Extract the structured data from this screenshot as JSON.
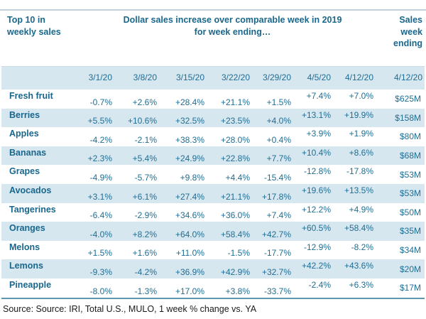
{
  "header": {
    "left": {
      "line1": "Top 10 in",
      "line2": "weekly sales"
    },
    "center": {
      "line1": "Dollar sales increase over comparable week in 2019",
      "line2": "for week ending…"
    },
    "right": {
      "line1": "Sales",
      "line2": "week",
      "line3": "ending"
    }
  },
  "footer": {
    "source_text": "Source: Source: IRI, Total U.S., MULO, 1 week % change vs. YA"
  },
  "colors": {
    "accent_text": "#1e6e94",
    "bold_text": "#19678d",
    "row_band": "#d7e7f0",
    "rule_top": "#c2d2da",
    "rule_bottom": "#5e96b2",
    "footer_text": "#1a1a1a"
  },
  "chart_data": {
    "type": "table",
    "title": "Dollar sales increase over comparable week in 2019 for week ending…",
    "row_header": "Top 10 in weekly sales",
    "last_column_header": "Sales week ending",
    "columns": [
      "3/1/20",
      "3/8/20",
      "3/15/20",
      "3/22/20",
      "3/29/20",
      "4/5/20",
      "4/12/20",
      "4/12/20"
    ],
    "rows": [
      {
        "name": "Fresh fruit",
        "pct_change": [
          "-0.7%",
          "+2.6%",
          "+28.4%",
          "+21.1%",
          "+1.5%",
          "+7.4%",
          "+7.0%"
        ],
        "sales_week_ending": "$625M"
      },
      {
        "name": "Berries",
        "pct_change": [
          "+5.5%",
          "+10.6%",
          "+32.5%",
          "+23.5%",
          "+4.0%",
          "+13.1%",
          "+19.9%"
        ],
        "sales_week_ending": "$158M"
      },
      {
        "name": "Apples",
        "pct_change": [
          "-4.2%",
          "-2.1%",
          "+38.3%",
          "+28.0%",
          "+0.4%",
          "+3.9%",
          "+1.9%"
        ],
        "sales_week_ending": "$80M"
      },
      {
        "name": "Bananas",
        "pct_change": [
          "+2.3%",
          "+5.4%",
          "+24.9%",
          "+22.8%",
          "+7.7%",
          "+10.4%",
          "+8.6%"
        ],
        "sales_week_ending": "$68M"
      },
      {
        "name": "Grapes",
        "pct_change": [
          "-4.9%",
          "-5.7%",
          "+9.8%",
          "+4.4%",
          "-15.4%",
          "-12.8%",
          "-17.8%"
        ],
        "sales_week_ending": "$53M"
      },
      {
        "name": "Avocados",
        "pct_change": [
          "+3.1%",
          "+6.1%",
          "+27.4%",
          "+21.1%",
          "+17.8%",
          "+19.6%",
          "+13.5%"
        ],
        "sales_week_ending": "$53M"
      },
      {
        "name": "Tangerines",
        "pct_change": [
          "-6.4%",
          "-2.9%",
          "+34.6%",
          "+36.0%",
          "+7.4%",
          "+12.2%",
          "+4.9%"
        ],
        "sales_week_ending": "$50M"
      },
      {
        "name": "Oranges",
        "pct_change": [
          "-4.0%",
          "+8.2%",
          "+64.0%",
          "+58.4%",
          "+42.7%",
          "+60.5%",
          "+58.4%"
        ],
        "sales_week_ending": "$35M"
      },
      {
        "name": "Melons",
        "pct_change": [
          "+1.5%",
          "+1.6%",
          "+11.0%",
          "-1.5%",
          "-17.7%",
          "-12.9%",
          "-8.2%"
        ],
        "sales_week_ending": "$34M"
      },
      {
        "name": "Lemons",
        "pct_change": [
          "-9.3%",
          "-4.2%",
          "+36.9%",
          "+42.9%",
          "+32.7%",
          "+42.2%",
          "+43.6%"
        ],
        "sales_week_ending": "$20M"
      },
      {
        "name": "Pineapple",
        "pct_change": [
          "-8.0%",
          "-1.3%",
          "+17.0%",
          "+3.8%",
          "-33.7%",
          "-2.4%",
          "+6.3%"
        ],
        "sales_week_ending": "$17M"
      }
    ],
    "source": "Source: Source: IRI, Total U.S., MULO, 1 week % change vs. YA"
  }
}
